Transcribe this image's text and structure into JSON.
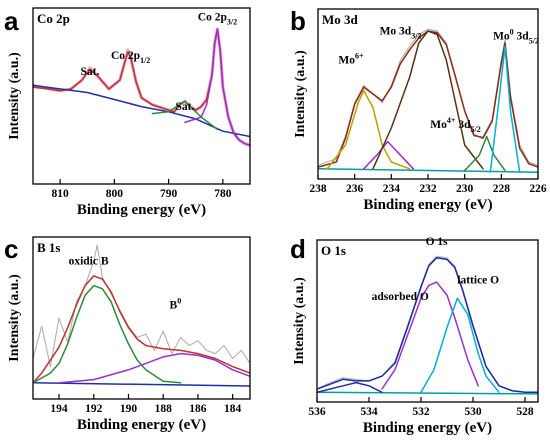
{
  "chart_data": [
    {
      "type": "line",
      "panel": "a",
      "title": "Co 2p",
      "xlabel": "Binding energy (eV)",
      "ylabel": "Intensity (a.u.)",
      "xlim": [
        815,
        775
      ],
      "ylim": [
        0,
        100
      ],
      "xreversed": true,
      "xticks": [
        810,
        800,
        790,
        780
      ],
      "tick_labels": [
        "810",
        "800",
        "790",
        "780"
      ],
      "annotations": [
        {
          "text": "Sat.",
          "x": 804.5,
          "y": 62
        },
        {
          "text": "Co 2p",
          "sub": "1/2",
          "x": 797,
          "y": 71
        },
        {
          "text": "Sat.",
          "x": 787,
          "y": 42
        },
        {
          "text": "Co 2p",
          "sub": "3/2",
          "x": 781,
          "y": 93
        }
      ],
      "series": [
        {
          "role": "raw",
          "color": "#e8a8c8",
          "x": [
            815,
            812,
            810,
            808,
            806,
            804.5,
            803,
            801,
            799,
            798,
            797.5,
            797,
            796,
            795,
            793,
            791,
            789,
            788,
            787,
            786,
            785,
            784,
            783,
            782,
            781.5,
            781,
            780.5,
            780,
            779,
            778,
            777,
            776,
            775
          ],
          "y": [
            56,
            54,
            53,
            54,
            59,
            66,
            61,
            54,
            59,
            70,
            76,
            72,
            58,
            49,
            45,
            43,
            41,
            45,
            47,
            44,
            42,
            44,
            48,
            62,
            80,
            88,
            76,
            55,
            38,
            29,
            25,
            23,
            22
          ]
        },
        {
          "role": "envelope",
          "color": "#c03030",
          "x": [
            815,
            812,
            810,
            808,
            806,
            804.5,
            803,
            801,
            799,
            798,
            797.5,
            797,
            796,
            795,
            793,
            791,
            789,
            788,
            787,
            786,
            785,
            784,
            783,
            782,
            781.5,
            781,
            780.5,
            780,
            779,
            778,
            777,
            776,
            775
          ],
          "y": [
            55,
            54,
            53,
            54,
            59,
            65,
            61,
            54,
            59,
            70,
            75,
            72,
            58,
            49,
            45,
            43,
            41,
            45,
            47,
            44,
            42,
            44,
            48,
            62,
            80,
            88,
            76,
            55,
            38,
            29,
            25,
            23,
            22
          ]
        },
        {
          "role": "baseline",
          "color": "#2030a0",
          "x": [
            815,
            805,
            800,
            795,
            790,
            785,
            780,
            775
          ],
          "y": [
            56,
            52,
            48,
            44,
            41,
            37,
            30,
            27
          ]
        },
        {
          "role": "component",
          "color": "#9b30d0",
          "x": [
            787,
            784,
            783,
            782,
            781.5,
            781,
            780.5,
            780,
            779,
            778,
            777,
            776,
            775
          ],
          "y": [
            35,
            38,
            45,
            62,
            80,
            88,
            76,
            55,
            38,
            29,
            25,
            23,
            22
          ]
        },
        {
          "role": "component",
          "color": "#2e8b3a",
          "x": [
            793,
            790,
            788,
            787,
            786,
            784,
            781
          ],
          "y": [
            40,
            41,
            45,
            47,
            44,
            38,
            31
          ]
        }
      ]
    },
    {
      "type": "line",
      "panel": "b",
      "title": "Mo 3d",
      "xlabel": "Binding energy (eV)",
      "ylabel": "Intensity (a.u.)",
      "xlim": [
        238,
        226
      ],
      "ylim": [
        0,
        100
      ],
      "xreversed": true,
      "xticks": [
        238,
        236,
        234,
        232,
        230,
        228,
        226
      ],
      "tick_labels": [
        "238",
        "236",
        "234",
        "232",
        "230",
        "228",
        "226"
      ],
      "annotations": [
        {
          "text": "Mo 3d",
          "sub": "3/2",
          "x": 233.5,
          "y": 85
        },
        {
          "text": "Mo",
          "sup": "6+",
          "x": 236.2,
          "y": 68
        },
        {
          "text": "Mo",
          "sup": "0",
          "extra": " 3d",
          "sub": "5/2",
          "x": 227.2,
          "y": 82
        },
        {
          "text": "Mo",
          "sup": "4+",
          "extra": " 3d",
          "sub": "5/2",
          "x": 230.5,
          "y": 30
        }
      ],
      "series": [
        {
          "role": "raw",
          "color": "#a8a8a8",
          "x": [
            238,
            237,
            236.5,
            236,
            235.5,
            235,
            234.5,
            234,
            233.5,
            233,
            232.5,
            232,
            231.5,
            231,
            230.5,
            230,
            229.5,
            229,
            228.5,
            228,
            227.8,
            227.5,
            227,
            226.5,
            226
          ],
          "y": [
            8,
            12,
            25,
            45,
            55,
            50,
            45,
            55,
            70,
            78,
            85,
            88,
            87,
            80,
            60,
            40,
            25,
            25,
            35,
            70,
            82,
            50,
            20,
            10,
            8
          ]
        },
        {
          "role": "envelope",
          "color": "#8b2a1a",
          "x": [
            238,
            237,
            236.5,
            236,
            235.5,
            235,
            234.5,
            234,
            233.5,
            233,
            232.5,
            232,
            231.5,
            231,
            230.5,
            230,
            229.5,
            229,
            228.5,
            228,
            227.8,
            227.5,
            227,
            226.5,
            226
          ],
          "y": [
            7,
            10,
            24,
            44,
            54,
            50,
            46,
            54,
            68,
            76,
            83,
            87,
            86,
            79,
            60,
            40,
            26,
            24,
            34,
            68,
            80,
            48,
            18,
            9,
            7
          ]
        },
        {
          "role": "baseline",
          "color": "#00a0a0",
          "x": [
            238,
            226
          ],
          "y": [
            6,
            4
          ]
        },
        {
          "role": "component",
          "color": "#c0a000",
          "x": [
            237.5,
            236.5,
            235.8,
            235.5,
            235,
            234.5,
            234,
            233
          ],
          "y": [
            6,
            20,
            45,
            52,
            42,
            20,
            10,
            6
          ]
        },
        {
          "role": "component",
          "color": "#9b30d0",
          "x": [
            235.5,
            234.8,
            234.2,
            233.5,
            232.8
          ],
          "y": [
            6,
            14,
            22,
            14,
            6
          ]
        },
        {
          "role": "component",
          "color": "#5a3010",
          "x": [
            235,
            234,
            233,
            232.5,
            232,
            231.5,
            231,
            230.5,
            230,
            229
          ],
          "y": [
            6,
            30,
            60,
            80,
            87,
            85,
            70,
            45,
            20,
            6
          ]
        },
        {
          "role": "component",
          "color": "#2e8b3a",
          "x": [
            230,
            229.2,
            228.8,
            228.4,
            227.8
          ],
          "y": [
            5,
            14,
            25,
            14,
            5
          ]
        },
        {
          "role": "component",
          "color": "#00b0d0",
          "x": [
            228.6,
            228.2,
            227.8,
            227.5,
            227
          ],
          "y": [
            4,
            40,
            78,
            40,
            4
          ]
        }
      ]
    },
    {
      "type": "line",
      "panel": "c",
      "title": "B 1s",
      "xlabel": "Binding energy (eV)",
      "ylabel": "Intensity (a.u.)",
      "xlim": [
        195.5,
        183
      ],
      "ylim": [
        0,
        100
      ],
      "xreversed": true,
      "xticks": [
        194,
        192,
        190,
        188,
        186,
        184
      ],
      "tick_labels": [
        "194",
        "192",
        "190",
        "188",
        "186",
        "184"
      ],
      "annotations": [
        {
          "text": "oxidic B",
          "x": 192.3,
          "y": 83
        },
        {
          "text": "B",
          "sup": "0",
          "x": 187.3,
          "y": 56
        }
      ],
      "series": [
        {
          "role": "raw",
          "color": "#b0b0b0",
          "x": [
            195.5,
            195,
            194.5,
            194,
            193.5,
            193,
            192.5,
            192,
            191.8,
            191.5,
            191,
            190.5,
            190,
            189.5,
            189,
            188.5,
            188,
            187.5,
            187,
            186.5,
            186,
            185.5,
            185,
            184.5,
            184,
            183.5,
            183
          ],
          "y": [
            25,
            45,
            20,
            50,
            35,
            60,
            70,
            85,
            95,
            75,
            65,
            55,
            45,
            38,
            40,
            30,
            42,
            28,
            38,
            33,
            36,
            30,
            28,
            33,
            25,
            30,
            22
          ]
        },
        {
          "role": "envelope",
          "color": "#c03030",
          "x": [
            195.5,
            195,
            194.5,
            194,
            193.5,
            193,
            192.5,
            192,
            191.5,
            191,
            190.5,
            190,
            189.5,
            189,
            188.5,
            188,
            187,
            186,
            185,
            184,
            183
          ],
          "y": [
            10,
            16,
            24,
            32,
            44,
            58,
            70,
            76,
            74,
            66,
            54,
            44,
            37,
            33,
            32,
            31,
            30,
            28,
            25,
            20,
            16
          ]
        },
        {
          "role": "baseline",
          "color": "#2030a0",
          "x": [
            195.5,
            183
          ],
          "y": [
            10,
            8
          ]
        },
        {
          "role": "component",
          "color": "#2e8b3a",
          "x": [
            195.5,
            194.5,
            194,
            193.5,
            193,
            192.5,
            192,
            191.5,
            191,
            190.5,
            190,
            189.5,
            189,
            188,
            187
          ],
          "y": [
            10,
            16,
            22,
            34,
            50,
            64,
            70,
            68,
            60,
            46,
            34,
            24,
            18,
            11,
            10
          ]
        },
        {
          "role": "component",
          "color": "#9b30d0",
          "x": [
            194,
            192,
            190,
            189,
            188,
            187,
            186,
            185,
            184,
            183
          ],
          "y": [
            10,
            12,
            18,
            22,
            26,
            28,
            27,
            24,
            18,
            14
          ]
        }
      ]
    },
    {
      "type": "line",
      "panel": "d",
      "title": "O 1s",
      "xlabel": "Binding energy (eV)",
      "ylabel": "Intensity (a.u.)",
      "xlim": [
        536,
        527.5
      ],
      "ylim": [
        0,
        100
      ],
      "xreversed": true,
      "xticks": [
        536,
        534,
        532,
        530,
        528
      ],
      "tick_labels": [
        "536",
        "534",
        "532",
        "530",
        "528"
      ],
      "annotations": [
        {
          "text": "O 1s",
          "x": 531.4,
          "y": 97
        },
        {
          "text": "adsorbed O",
          "x": 532.8,
          "y": 63
        },
        {
          "text": "lattice O",
          "x": 529.8,
          "y": 73
        }
      ],
      "series": [
        {
          "role": "raw",
          "color": "#b8b8b8",
          "x": [
            536,
            535.5,
            535,
            534.5,
            534,
            533.5,
            533,
            532.5,
            532,
            531.7,
            531.4,
            531,
            530.7,
            530.4,
            530,
            529.5,
            529,
            528.5,
            528,
            527.5
          ],
          "y": [
            8,
            12,
            15,
            14,
            13,
            16,
            25,
            48,
            72,
            85,
            90,
            89,
            84,
            70,
            48,
            22,
            10,
            7,
            6,
            6
          ]
        },
        {
          "role": "envelope",
          "color": "#1a2a9a",
          "x": [
            536,
            535.5,
            535,
            534.5,
            534,
            533.5,
            533,
            532.5,
            532,
            531.7,
            531.4,
            531,
            530.7,
            530.4,
            530,
            529.5,
            529,
            528.5,
            528,
            527.5
          ],
          "y": [
            8,
            11,
            14,
            13,
            13,
            16,
            24,
            47,
            71,
            84,
            89,
            88,
            83,
            69,
            47,
            22,
            10,
            7,
            6,
            6
          ]
        },
        {
          "role": "baseline",
          "color": "#00a0a0",
          "x": [
            536,
            527.5
          ],
          "y": [
            6,
            5
          ]
        },
        {
          "role": "component",
          "color": "#9b30d0",
          "x": [
            533.5,
            533,
            532.5,
            532,
            531.7,
            531.4,
            531,
            530.7,
            530.2,
            529.8
          ],
          "y": [
            8,
            20,
            42,
            64,
            72,
            74,
            66,
            52,
            26,
            10
          ]
        },
        {
          "role": "component",
          "color": "#00b0d0",
          "x": [
            532,
            531.5,
            531,
            530.6,
            530.2,
            529.8,
            529.5,
            529
          ],
          "y": [
            6,
            20,
            46,
            64,
            54,
            30,
            16,
            6
          ]
        },
        {
          "role": "component",
          "color": "#2030a0",
          "x": [
            536,
            535,
            534.5,
            534,
            533.5
          ],
          "y": [
            6,
            10,
            12,
            10,
            6
          ]
        }
      ]
    }
  ]
}
